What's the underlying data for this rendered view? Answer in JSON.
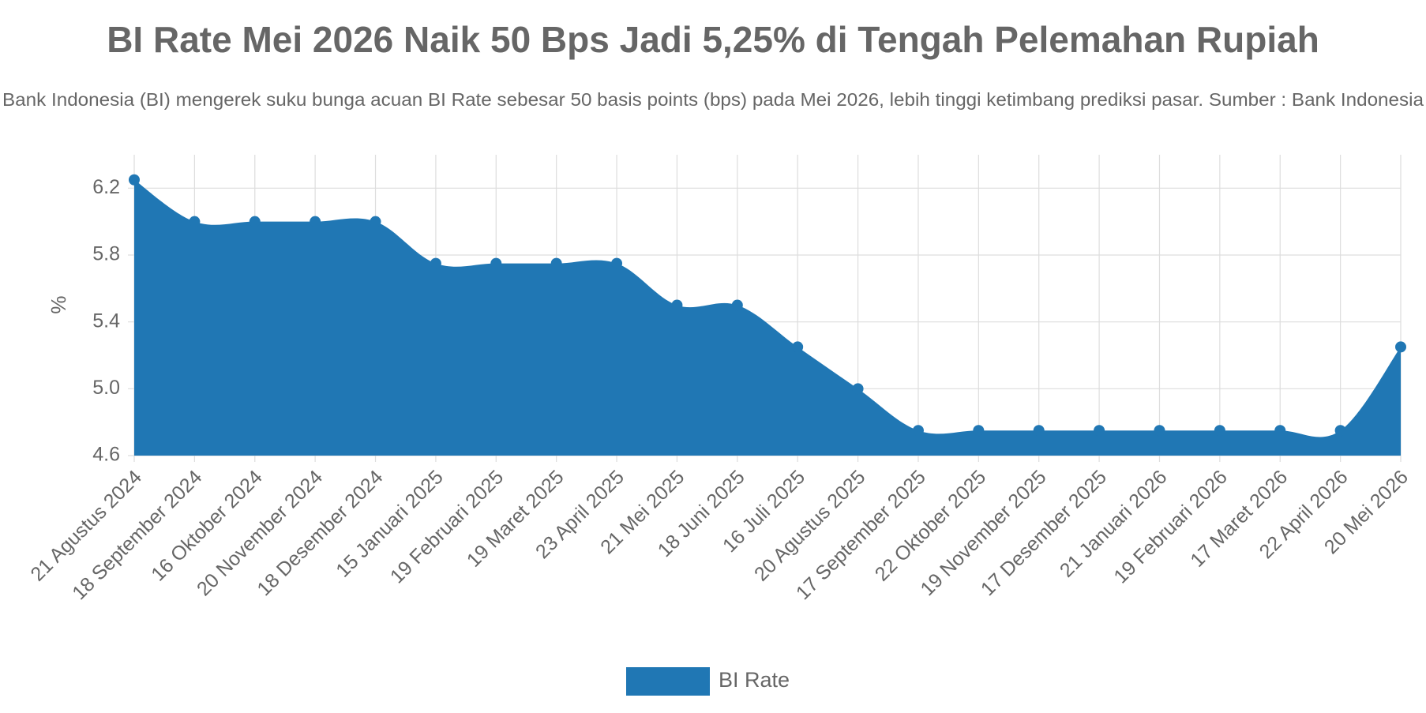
{
  "chart_data": {
    "type": "area",
    "title": "BI Rate Mei 2026 Naik 50 Bps Jadi 5,25% di Tengah Pelemahan Rupiah",
    "subtitle": "Bank Indonesia (BI) mengerek suku bunga acuan BI Rate sebesar 50 basis points (bps) pada Mei 2026, lebih tinggi ketimbang prediksi pasar. Sumber : Bank Indonesia",
    "y_label": "%",
    "categories": [
      "21 Agustus 2024",
      "18 September 2024",
      "16 Oktober 2024",
      "20 November 2024",
      "18 Desember 2024",
      "15 Januari 2025",
      "19 Februari 2025",
      "19 Maret 2025",
      "23 April 2025",
      "21 Mei 2025",
      "18 Juni 2025",
      "16 Juli 2025",
      "20 Agustus 2025",
      "17 September 2025",
      "22 Oktober 2025",
      "19 November 2025",
      "17 Desember 2025",
      "21 Januari 2026",
      "19 Februari 2026",
      "17 Maret 2026",
      "22 April 2026",
      "20 Mei 2026"
    ],
    "series": [
      {
        "name": "BI Rate",
        "color": "#2077b4",
        "values": [
          6.25,
          6.0,
          6.0,
          6.0,
          6.0,
          5.75,
          5.75,
          5.75,
          5.75,
          5.5,
          5.5,
          5.25,
          5.0,
          4.75,
          4.75,
          4.75,
          4.75,
          4.75,
          4.75,
          4.75,
          4.75,
          5.25
        ]
      }
    ],
    "ylim": [
      4.6,
      6.4
    ],
    "yticks": [
      4.6,
      {
        "value": 5,
        "label": "5.0"
      },
      5.4,
      5.8,
      6.2
    ],
    "grid": true,
    "legend": "bottom"
  }
}
